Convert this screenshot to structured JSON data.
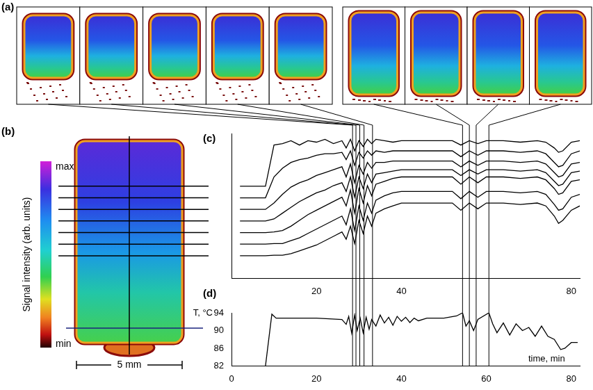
{
  "panel_a": {
    "label": "(a)",
    "frame_times": [
      [
        28.5,
        29.3,
        30.2,
        31.2,
        33.2
      ],
      [
        54.4,
        56,
        57.6,
        60.6
      ]
    ]
  },
  "panel_b": {
    "label": "(b)",
    "colorbar": {
      "title": "Signal intensity (arb. units)",
      "max_label": "max",
      "min_label": "min"
    },
    "scale_bar": "5 mm"
  },
  "chart_data": [
    {
      "title": "(c)",
      "type": "line",
      "x": [
        2,
        8,
        10,
        12,
        14,
        16,
        18,
        20,
        22,
        24,
        26,
        27,
        28,
        29,
        30,
        31,
        32,
        33,
        34,
        36,
        38,
        40,
        44,
        48,
        52,
        54,
        56,
        58,
        60,
        64,
        68,
        72,
        74,
        76,
        77,
        78,
        80,
        82
      ],
      "xlim": [
        0,
        82
      ],
      "xticks": [
        20,
        40,
        80
      ],
      "ylim": [
        0,
        100
      ],
      "tick_labels": "x",
      "series": [
        {
          "color": "#000000",
          "values": [
            63.6,
            63.6,
            92,
            93,
            95,
            92,
            95,
            94,
            96,
            93,
            95,
            90,
            96,
            88,
            95,
            91,
            96,
            93,
            96,
            95,
            94,
            95,
            95,
            95,
            95,
            92,
            95,
            93,
            95,
            95,
            94,
            95,
            94,
            90,
            87,
            88,
            94,
            95
          ]
        },
        {
          "color": "#000000",
          "values": [
            55.6,
            55.6,
            70,
            76,
            80,
            82,
            83,
            85,
            86,
            86,
            87,
            82,
            88,
            78,
            87,
            83,
            88,
            85,
            88,
            87,
            88,
            88,
            88,
            88,
            88,
            84,
            88,
            85,
            88,
            88,
            87,
            88,
            86,
            80,
            77,
            78,
            86,
            88
          ]
        },
        {
          "color": "#000000",
          "values": [
            47.6,
            47.6,
            52,
            58,
            63,
            66,
            68,
            71,
            73,
            75,
            77,
            70,
            79,
            66,
            78,
            72,
            80,
            76,
            80,
            80,
            81,
            81,
            81,
            81,
            81,
            77,
            81,
            78,
            81,
            81,
            80,
            81,
            79,
            73,
            70,
            71,
            79,
            80
          ]
        },
        {
          "color": "#000000",
          "values": [
            39.6,
            39.6,
            41,
            45,
            49,
            53,
            56,
            59,
            61,
            64,
            66,
            60,
            70,
            56,
            70,
            62,
            72,
            66,
            72,
            73,
            74,
            75,
            75,
            75,
            75,
            71,
            75,
            72,
            75,
            75,
            74,
            75,
            73,
            67,
            64,
            65,
            73,
            74
          ]
        },
        {
          "color": "#000000",
          "values": [
            31.6,
            31.6,
            32,
            33,
            36,
            40,
            44,
            47,
            50,
            53,
            56,
            50,
            61,
            45,
            62,
            52,
            64,
            57,
            65,
            67,
            69,
            70,
            70,
            70,
            70,
            65,
            70,
            66,
            70,
            70,
            69,
            70,
            68,
            62,
            58,
            59,
            67,
            68
          ]
        },
        {
          "color": "#000000",
          "values": [
            23.6,
            23.6,
            24,
            24,
            26,
            28,
            31,
            34,
            37,
            40,
            43,
            37,
            48,
            33,
            50,
            40,
            52,
            45,
            54,
            57,
            59,
            60,
            60,
            60,
            60,
            55,
            60,
            56,
            60,
            60,
            59,
            60,
            58,
            51,
            47,
            48,
            56,
            58
          ]
        },
        {
          "color": "#000000",
          "values": [
            15.6,
            15.6,
            16,
            16,
            17,
            19,
            21,
            23,
            26,
            29,
            32,
            27,
            36,
            24,
            40,
            31,
            43,
            36,
            45,
            48,
            50,
            52,
            52,
            52,
            52,
            47,
            52,
            48,
            52,
            52,
            51,
            52,
            50,
            43,
            38,
            40,
            47,
            50
          ]
        }
      ]
    },
    {
      "title": "(d)",
      "type": "line",
      "x": [
        8,
        9.5,
        10.5,
        20,
        26,
        27,
        27.6,
        28.3,
        29,
        29.6,
        30.3,
        31,
        31.7,
        32.4,
        33,
        34,
        35,
        36,
        37,
        38,
        39,
        40,
        41,
        42,
        43,
        44,
        46,
        50,
        53,
        54.4,
        55.2,
        56,
        57,
        58,
        60.6,
        61.5,
        62.5,
        64,
        65.5,
        67,
        68.5,
        70,
        71.5,
        73,
        74.5,
        76,
        77.5,
        78.5,
        80,
        81.5
      ],
      "values": [
        82,
        93.7,
        92.8,
        92.8,
        92.5,
        91.4,
        93.2,
        89.4,
        93.5,
        90.0,
        92.8,
        89.5,
        93.0,
        90.3,
        92.5,
        91.0,
        93.5,
        91.7,
        93.0,
        91.2,
        93.2,
        92.1,
        93.0,
        91.8,
        92.8,
        92.2,
        92.8,
        92.8,
        93.3,
        94.0,
        91.0,
        92.2,
        90.0,
        92.5,
        94.0,
        91.5,
        89.5,
        91.7,
        89.0,
        91.5,
        90.0,
        90.7,
        88.7,
        91.0,
        88.7,
        88.0,
        85.7,
        86.0,
        87.3,
        87.3
      ],
      "color": "#000000",
      "xlim": [
        0,
        82
      ],
      "xticks": [
        0,
        20,
        40,
        60,
        80
      ],
      "ylim": [
        82,
        94
      ],
      "yticks": [
        82,
        86,
        90,
        94
      ],
      "y_label": "T, °C",
      "x_label": "time, min"
    }
  ]
}
